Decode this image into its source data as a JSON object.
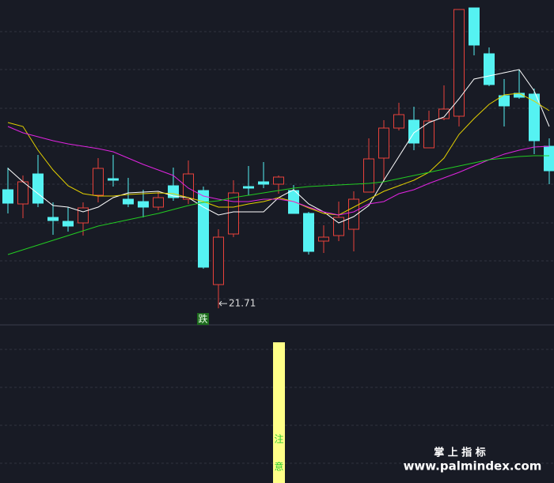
{
  "chart_data": {
    "type": "candlestick",
    "ylim": [
      21.17,
      29.37
    ],
    "up_color": "#e8413a",
    "down_color": "#55f2f2",
    "open": [
      24.57,
      24.21,
      24.97,
      23.87,
      23.77,
      23.73,
      24.43,
      24.85,
      24.33,
      24.27,
      24.13,
      24.67,
      24.33,
      24.55,
      22.17,
      23.45,
      24.65,
      24.77,
      24.71,
      24.55,
      23.97,
      23.27,
      23.41,
      23.57,
      24.51,
      25.37,
      26.13,
      26.33,
      25.63,
      26.37,
      26.43,
      29.17,
      28.01,
      26.95,
      27.01,
      26.99,
      25.67
    ],
    "high": [
      25.13,
      24.93,
      25.45,
      24.25,
      24.13,
      24.25,
      25.37,
      25.45,
      24.87,
      24.57,
      24.51,
      25.13,
      25.31,
      24.65,
      23.57,
      24.81,
      25.17,
      25.27,
      24.93,
      24.69,
      24.01,
      23.67,
      24.27,
      24.53,
      25.87,
      26.33,
      26.77,
      26.67,
      26.57,
      27.21,
      29.13,
      29.17,
      28.17,
      27.37,
      27.61,
      27.13,
      25.87
    ],
    "low": [
      23.97,
      23.85,
      24.13,
      23.43,
      23.51,
      23.41,
      24.25,
      24.65,
      24.13,
      23.87,
      24.05,
      24.29,
      24.21,
      22.57,
      21.71,
      23.37,
      24.43,
      24.61,
      24.47,
      23.97,
      22.93,
      22.97,
      23.27,
      23.01,
      24.51,
      24.77,
      26.07,
      25.57,
      25.63,
      26.33,
      26.17,
      27.97,
      27.19,
      26.17,
      26.87,
      25.47,
      24.71
    ],
    "close": [
      24.23,
      24.77,
      24.23,
      23.79,
      23.65,
      24.11,
      25.11,
      24.81,
      24.21,
      24.13,
      24.37,
      24.37,
      24.97,
      22.61,
      23.37,
      24.49,
      24.61,
      24.71,
      24.89,
      23.97,
      23.01,
      23.37,
      23.87,
      24.33,
      25.35,
      26.13,
      26.47,
      25.75,
      26.31,
      26.61,
      29.13,
      28.23,
      27.23,
      26.69,
      26.91,
      25.81,
      25.05
    ],
    "ma_lines": [
      {
        "color": "#ffffff",
        "values": [
          25.11,
          24.77,
          24.47,
          24.17,
          24.13,
          24.01,
          24.13,
          24.37,
          24.49,
          24.51,
          24.53,
          24.41,
          24.37,
          24.13,
          23.93,
          24.01,
          24.01,
          24.01,
          24.37,
          24.57,
          24.21,
          24.01,
          23.73,
          23.89,
          24.17,
          24.81,
          25.41,
          26.01,
          26.27,
          26.41,
          26.87,
          27.37,
          27.45,
          27.53,
          27.61,
          27.07,
          26.17
        ]
      },
      {
        "color": "#e3d000",
        "values": [
          26.27,
          26.17,
          25.57,
          25.07,
          24.67,
          24.47,
          24.41,
          24.41,
          24.45,
          24.47,
          24.49,
          24.47,
          24.37,
          24.27,
          24.13,
          24.13,
          24.21,
          24.27,
          24.37,
          24.27,
          24.11,
          23.97,
          23.93,
          24.13,
          24.33,
          24.53,
          24.67,
          24.81,
          25.01,
          25.37,
          25.97,
          26.37,
          26.73,
          26.97,
          27.01,
          26.81,
          26.57
        ]
      },
      {
        "color": "#e024e0",
        "values": [
          26.17,
          26.01,
          25.91,
          25.81,
          25.73,
          25.67,
          25.61,
          25.53,
          25.37,
          25.21,
          25.07,
          24.93,
          24.61,
          24.41,
          24.33,
          24.27,
          24.27,
          24.33,
          24.33,
          24.27,
          24.13,
          24.01,
          23.93,
          24.01,
          24.21,
          24.27,
          24.47,
          24.57,
          24.73,
          24.87,
          25.01,
          25.17,
          25.33,
          25.47,
          25.57,
          25.65,
          25.67
        ]
      },
      {
        "color": "#22cc22",
        "values": [
          22.93,
          23.05,
          23.17,
          23.29,
          23.41,
          23.53,
          23.65,
          23.73,
          23.81,
          23.89,
          23.97,
          24.07,
          24.17,
          24.25,
          24.29,
          24.37,
          24.43,
          24.49,
          24.55,
          24.61,
          24.65,
          24.67,
          24.69,
          24.71,
          24.73,
          24.77,
          24.85,
          24.93,
          25.01,
          25.09,
          25.17,
          25.25,
          25.33,
          25.37,
          25.41,
          25.43,
          25.43
        ]
      }
    ],
    "low_annotation": "21.71",
    "signal_label": "跌",
    "lower_signal": [
      "注",
      "意"
    ],
    "watermark": {
      "title": "掌 上 指 标",
      "url": "www.palmindex.com"
    }
  }
}
